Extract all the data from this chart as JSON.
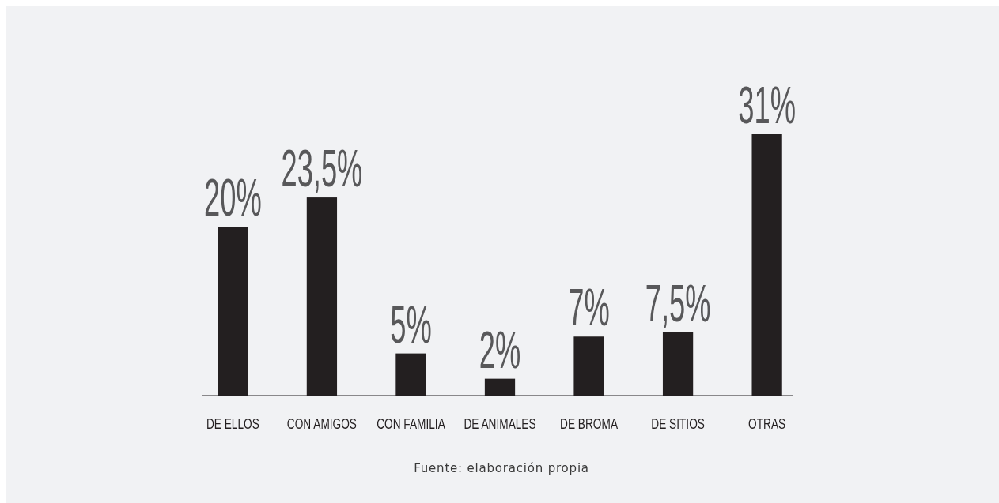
{
  "chart_data": {
    "type": "bar",
    "categories": [
      "DE ELLOS",
      "CON AMIGOS",
      "CON FAMILIA",
      "DE ANIMALES",
      "DE BROMA",
      "DE SITIOS",
      "OTRAS"
    ],
    "values": [
      20,
      23.5,
      5,
      2,
      7,
      7.5,
      31
    ],
    "value_labels": [
      "20%",
      "23,5%",
      "5%",
      "2%",
      "7%",
      "7,5%",
      "31%"
    ],
    "color": "#231f20",
    "annotations": [
      "Fuente: elaboración propia"
    ]
  }
}
